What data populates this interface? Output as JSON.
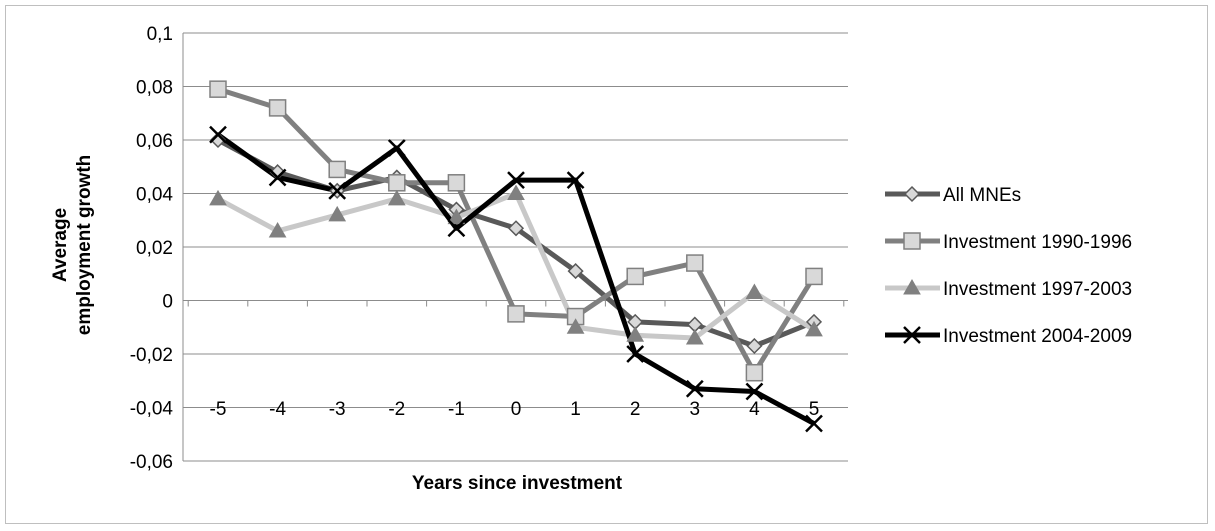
{
  "chart_data": {
    "type": "line",
    "xlabel": "Years since investment",
    "ylabel_lines": [
      "Average",
      "employment growth"
    ],
    "categories": [
      "-5",
      "-4",
      "-3",
      "-2",
      "-1",
      "0",
      "1",
      "2",
      "3",
      "4",
      "5"
    ],
    "y_ticks": [
      "0,1",
      "0,08",
      "0,06",
      "0,04",
      "0,02",
      "0",
      "-0,02",
      "-0,04",
      "-0,06"
    ],
    "ylim": [
      -0.06,
      0.1
    ],
    "grid": true,
    "legend_position": "right",
    "series": [
      {
        "name": "All MNEs",
        "marker": "diamond",
        "color": "#595959",
        "marker_fill": "#d9d9d9",
        "values": [
          0.06,
          0.048,
          0.041,
          0.046,
          0.034,
          0.027,
          0.011,
          -0.008,
          -0.009,
          -0.017,
          -0.008
        ]
      },
      {
        "name": "Investment 1990-1996",
        "marker": "square",
        "color": "#808080",
        "marker_fill": "#d9d9d9",
        "values": [
          0.079,
          0.072,
          0.049,
          0.044,
          0.044,
          -0.005,
          -0.006,
          0.009,
          0.014,
          -0.027,
          0.009
        ]
      },
      {
        "name": "Investment 1997-2003",
        "marker": "triangle",
        "color": "#c8c8c8",
        "marker_fill": "#808080",
        "values": [
          0.038,
          0.026,
          0.032,
          0.038,
          0.031,
          0.04,
          -0.01,
          -0.013,
          -0.014,
          0.003,
          -0.011
        ]
      },
      {
        "name": "Investment 2004-2009",
        "marker": "x",
        "color": "#000000",
        "marker_fill": "#000000",
        "values": [
          0.062,
          0.046,
          0.041,
          0.057,
          0.027,
          0.045,
          0.045,
          -0.02,
          -0.033,
          -0.034,
          -0.046
        ]
      }
    ]
  }
}
